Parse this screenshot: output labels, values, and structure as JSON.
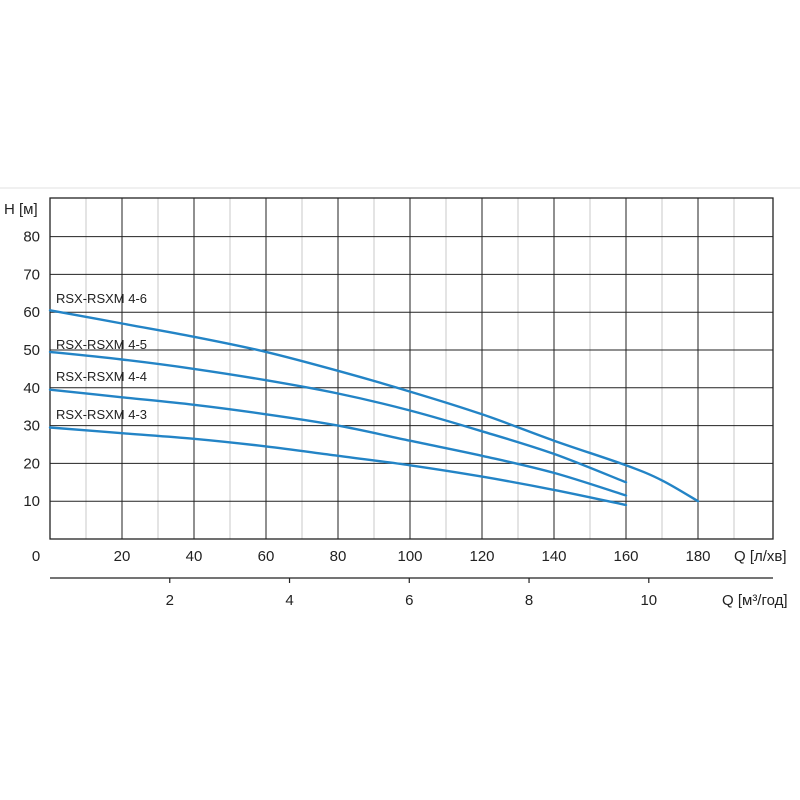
{
  "chart_data": {
    "type": "line",
    "ylabel": "H [м]",
    "xlabel": "Q [л/хв]",
    "x2label": "Q [м³/год]",
    "xlim": [
      0,
      190
    ],
    "ylim": [
      0,
      90
    ],
    "x_ticks": [
      0,
      20,
      40,
      60,
      80,
      100,
      120,
      140,
      160,
      180
    ],
    "y_ticks": [
      10,
      20,
      30,
      40,
      50,
      60,
      70,
      80
    ],
    "x2_ticks": [
      2,
      4,
      6,
      8,
      10
    ],
    "grid": true,
    "colors": {
      "series": "#2384c6",
      "grid": "#222222",
      "minor_grid": "#c8c8c8"
    },
    "series": [
      {
        "name": "RSX-RSXM 4-6",
        "points": [
          [
            0,
            60.5
          ],
          [
            20,
            57
          ],
          [
            40,
            53.5
          ],
          [
            60,
            49.5
          ],
          [
            80,
            44.5
          ],
          [
            100,
            39
          ],
          [
            120,
            33
          ],
          [
            140,
            26
          ],
          [
            160,
            19.5
          ],
          [
            170,
            15.5
          ],
          [
            180,
            10
          ]
        ]
      },
      {
        "name": "RSX-RSXM 4-5",
        "points": [
          [
            0,
            49.5
          ],
          [
            20,
            47.5
          ],
          [
            40,
            45
          ],
          [
            60,
            42
          ],
          [
            80,
            38.5
          ],
          [
            100,
            34
          ],
          [
            120,
            28.5
          ],
          [
            140,
            22.5
          ],
          [
            160,
            15
          ]
        ]
      },
      {
        "name": "RSX-RSXM 4-4",
        "points": [
          [
            0,
            39.5
          ],
          [
            20,
            37.5
          ],
          [
            40,
            35.5
          ],
          [
            60,
            33
          ],
          [
            80,
            30
          ],
          [
            100,
            26
          ],
          [
            120,
            22
          ],
          [
            140,
            17.5
          ],
          [
            160,
            11.5
          ]
        ]
      },
      {
        "name": "RSX-RSXM 4-3",
        "points": [
          [
            0,
            29.5
          ],
          [
            20,
            28
          ],
          [
            40,
            26.5
          ],
          [
            60,
            24.5
          ],
          [
            80,
            22
          ],
          [
            100,
            19.5
          ],
          [
            120,
            16.5
          ],
          [
            140,
            13
          ],
          [
            160,
            9
          ]
        ]
      }
    ]
  }
}
